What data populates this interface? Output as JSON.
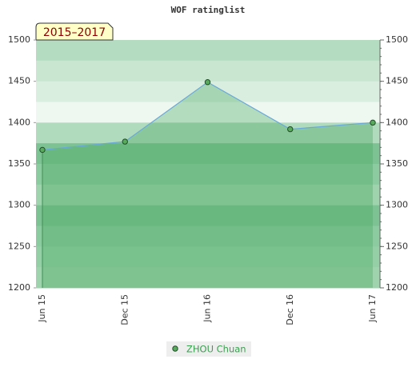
{
  "chart_data": {
    "type": "area",
    "title": "WOF ratinglist",
    "tag": "2015–2017",
    "categories": [
      "Jun 15",
      "Dec 15",
      "Jun 16",
      "Dec 16",
      "Jun 17"
    ],
    "series": [
      {
        "name": "ZHOU Chuan",
        "color": "#5aaa5e",
        "values": [
          1367,
          1377,
          1449,
          1392,
          1400
        ]
      }
    ],
    "ylim": [
      1200,
      1500
    ],
    "yticks": [
      1200,
      1250,
      1300,
      1350,
      1400,
      1450,
      1500
    ],
    "y2lim": [
      1200,
      1500
    ],
    "y2ticks": [
      1200,
      1250,
      1300,
      1350,
      1400,
      1450,
      1500
    ]
  }
}
